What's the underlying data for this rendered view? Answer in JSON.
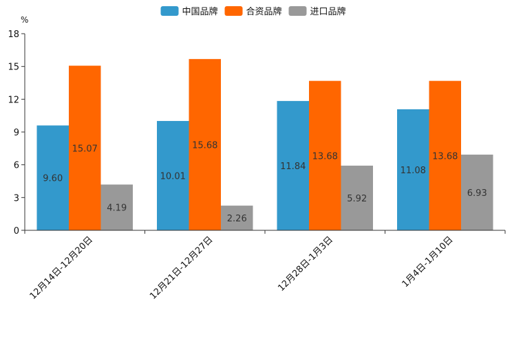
{
  "chart_data": {
    "type": "bar",
    "unit": "%",
    "categories": [
      "12月14日-12月20日",
      "12月21日-12月27日",
      "12月28日-1月3日",
      "1月4日-1月10日"
    ],
    "series": [
      {
        "name": "中国品牌",
        "color": "#3399cc",
        "values": [
          9.6,
          10.01,
          11.84,
          11.08
        ],
        "labels": [
          "9.60",
          "10.01",
          "11.84",
          "11.08"
        ]
      },
      {
        "name": "合资品牌",
        "color": "#ff6600",
        "values": [
          15.07,
          15.68,
          13.68,
          13.68
        ],
        "labels": [
          "15.07",
          "15.68",
          "13.68",
          "13.68"
        ]
      },
      {
        "name": "进口品牌",
        "color": "#999999",
        "values": [
          4.19,
          2.26,
          5.92,
          6.93
        ],
        "labels": [
          "4.19",
          "2.26",
          "5.92",
          "6.93"
        ]
      }
    ],
    "ylim": [
      0,
      18
    ],
    "yticks": [
      0,
      3,
      6,
      9,
      12,
      15,
      18
    ],
    "legend_position": "top-center"
  }
}
